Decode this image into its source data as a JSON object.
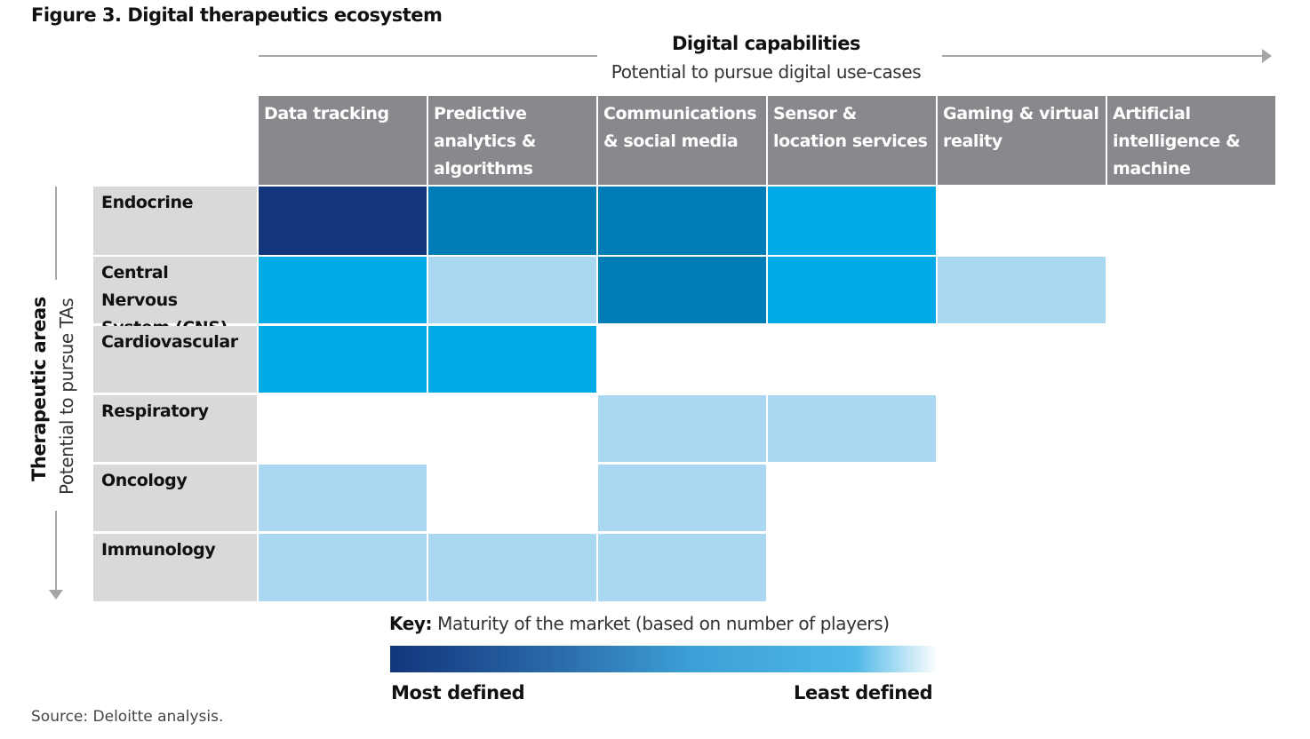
{
  "title": "Figure 3. Digital therapeutics ecosystem",
  "x_axis": {
    "title": "Digital capabilities",
    "subtitle": "Potential to pursue digital use-cases"
  },
  "y_axis": {
    "title": "Therapeutic areas",
    "subtitle": "Potential to pursue TAs"
  },
  "colors": {
    "1": "#12357c",
    "2": "#007cb6",
    "3": "#00aae6",
    "4": "#abd8f1"
  },
  "chart_data": {
    "type": "heatmap",
    "columns": [
      "Data tracking",
      "Predictive analytics & algorithms",
      "Communications & social media",
      "Sensor & location services",
      "Gaming & virtual reality",
      "Artificial intelligence & machine learning"
    ],
    "rows": [
      "Endocrine",
      "Central Nervous System (CNS)",
      "Cardiovascular",
      "Respiratory",
      "Oncology",
      "Immunology"
    ],
    "scale_note": "maturity level 1 = most defined, 4 = least defined, 0 = none",
    "values": [
      [
        1,
        2,
        2,
        3,
        0,
        0
      ],
      [
        3,
        4,
        2,
        3,
        4,
        0
      ],
      [
        3,
        3,
        0,
        0,
        0,
        0
      ],
      [
        0,
        0,
        4,
        4,
        0,
        0
      ],
      [
        4,
        0,
        4,
        0,
        0,
        0
      ],
      [
        4,
        4,
        4,
        0,
        0,
        0
      ]
    ]
  },
  "key": {
    "label": "Key:",
    "text": "Maturity of the market (based on number of players)",
    "most": "Most defined",
    "least": "Least defined"
  },
  "source": "Source: Deloitte analysis."
}
